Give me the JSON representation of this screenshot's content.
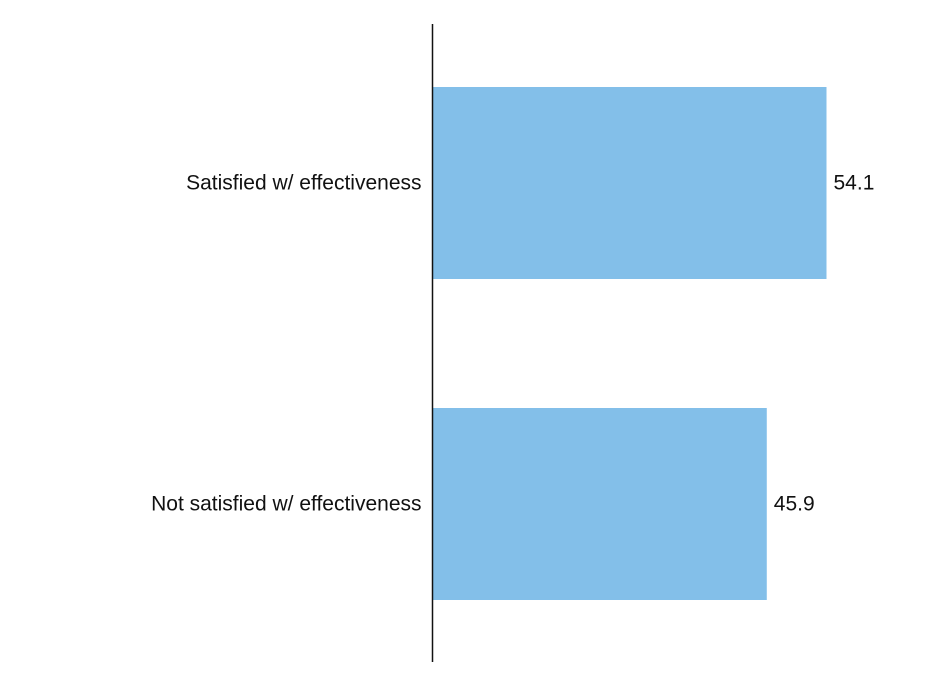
{
  "chart_data": {
    "type": "bar",
    "orientation": "horizontal",
    "categories": [
      "Satisfied w/ effectiveness",
      "Not satisfied w/ effectiveness"
    ],
    "values": [
      54.1,
      45.9
    ],
    "data_labels": [
      "54.1",
      "45.9"
    ],
    "title": "",
    "xlabel": "",
    "ylabel": "",
    "xlim": [
      0,
      60
    ],
    "grid": false,
    "legend": "none",
    "colors": {
      "bar": "#83BFE9",
      "axis": "#111111",
      "text": "#111111"
    }
  }
}
